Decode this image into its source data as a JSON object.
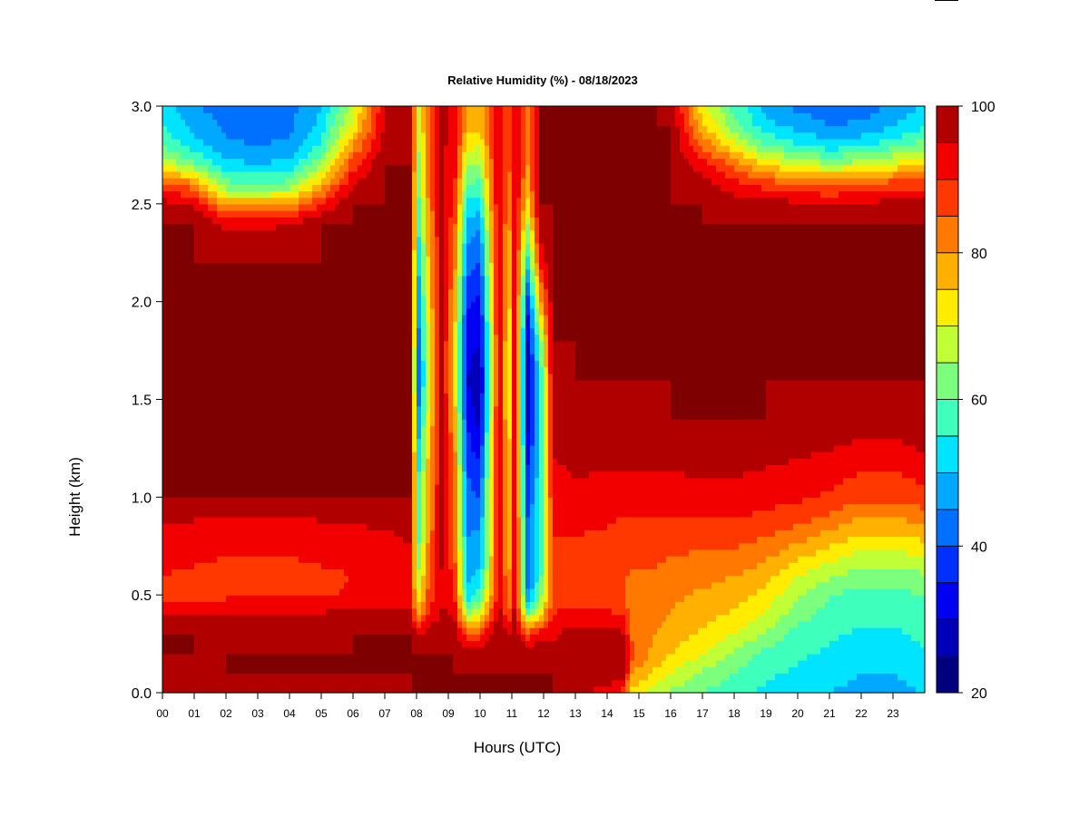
{
  "chart_data": {
    "type": "heatmap",
    "title": "Relative Humidity (%) - 08/18/2023",
    "xlabel": "Hours (UTC)",
    "ylabel": "Height (km)",
    "xlim": [
      0,
      24
    ],
    "ylim": [
      0,
      3
    ],
    "x_tick_values": [
      0,
      1,
      2,
      3,
      4,
      5,
      6,
      7,
      8,
      9,
      10,
      11,
      12,
      13,
      14,
      15,
      16,
      17,
      18,
      19,
      20,
      21,
      22,
      23
    ],
    "x_tick_labels": [
      "00",
      "01",
      "02",
      "03",
      "04",
      "05",
      "06",
      "07",
      "08",
      "09",
      "10",
      "11",
      "12",
      "13",
      "14",
      "15",
      "16",
      "17",
      "18",
      "19",
      "20",
      "21",
      "22",
      "23"
    ],
    "y_tick_values": [
      0,
      0.5,
      1,
      1.5,
      2,
      2.5,
      3
    ],
    "y_tick_labels": [
      "0.0",
      "0.5",
      "1.0",
      "1.5",
      "2.0",
      "2.5",
      "3.0"
    ],
    "colorbar": {
      "range": [
        20,
        100
      ],
      "step": 5,
      "tick_values": [
        20,
        40,
        60,
        80,
        100
      ],
      "tick_labels": [
        "20",
        "40",
        "60",
        "80",
        "100"
      ],
      "colors": [
        "#00007f",
        "#0000b8",
        "#0000f2",
        "#0030ff",
        "#0070ff",
        "#00a8ff",
        "#00e4ff",
        "#3fffbc",
        "#7cff7c",
        "#c0ff36",
        "#ffec00",
        "#ffb000",
        "#ff7800",
        "#ff3800",
        "#f20000",
        "#b00000",
        "#7f0000"
      ]
    },
    "grid": false,
    "legend": "right colorbar",
    "profile_heights_km": [
      0.0,
      0.1,
      0.2,
      0.3,
      0.4,
      0.5,
      0.6,
      0.7,
      0.8,
      0.9,
      1.0,
      1.2,
      1.4,
      1.6,
      1.8,
      2.0,
      2.2,
      2.4,
      2.5,
      2.6,
      2.7,
      2.8,
      2.9,
      3.0
    ],
    "profiles": [
      {
        "hour": 0.0,
        "rh": [
          95,
          99,
          100,
          100,
          96,
          88,
          90,
          92,
          91,
          97,
          100,
          100,
          100,
          100,
          100,
          100,
          100,
          100,
          97,
          88,
          70,
          60,
          55,
          52
        ]
      },
      {
        "hour": 1.0,
        "rh": [
          96,
          99,
          100,
          100,
          95,
          88,
          89,
          91,
          90,
          96,
          100,
          100,
          100,
          100,
          100,
          100,
          100,
          100,
          95,
          82,
          62,
          52,
          48,
          46
        ]
      },
      {
        "hour": 2.0,
        "rh": [
          97,
          100,
          100,
          99,
          95,
          89,
          88,
          90,
          90,
          95,
          100,
          100,
          100,
          100,
          100,
          100,
          100,
          94,
          78,
          62,
          52,
          46,
          44,
          42
        ]
      },
      {
        "hour": 3.0,
        "rh": [
          97,
          100,
          100,
          99,
          95,
          89,
          88,
          90,
          90,
          95,
          100,
          100,
          100,
          100,
          100,
          100,
          100,
          94,
          78,
          60,
          50,
          45,
          42,
          40
        ]
      },
      {
        "hour": 4.0,
        "rh": [
          97,
          100,
          100,
          99,
          95,
          89,
          88,
          90,
          90,
          95,
          100,
          100,
          100,
          100,
          100,
          100,
          100,
          95,
          80,
          62,
          52,
          46,
          44,
          43
        ]
      },
      {
        "hour": 5.0,
        "rh": [
          98,
          100,
          100,
          99,
          96,
          89,
          89,
          91,
          91,
          96,
          100,
          100,
          100,
          100,
          100,
          100,
          100,
          100,
          90,
          78,
          65,
          56,
          52,
          50
        ]
      },
      {
        "hour": 6.0,
        "rh": [
          99,
          100,
          100,
          100,
          97,
          91,
          90,
          92,
          92,
          97,
          100,
          100,
          100,
          100,
          100,
          100,
          100,
          100,
          100,
          95,
          88,
          80,
          72,
          68
        ]
      },
      {
        "hour": 7.0,
        "rh": [
          99,
          100,
          100,
          100,
          97,
          92,
          91,
          92,
          93,
          98,
          100,
          100,
          100,
          100,
          100,
          100,
          100,
          100,
          100,
          100,
          100,
          98,
          96,
          95
        ]
      },
      {
        "hour": 7.8,
        "rh": [
          100,
          100,
          100,
          100,
          97,
          93,
          92,
          94,
          96,
          100,
          100,
          100,
          100,
          100,
          100,
          100,
          100,
          100,
          100,
          100,
          100,
          100,
          100,
          100
        ]
      },
      {
        "hour": 8.05,
        "rh": [
          100,
          100,
          100,
          96,
          80,
          70,
          65,
          60,
          58,
          56,
          56,
          52,
          45,
          40,
          42,
          45,
          50,
          55,
          58,
          60,
          62,
          64,
          66,
          66
        ]
      },
      {
        "hour": 8.4,
        "rh": [
          100,
          100,
          100,
          98,
          90,
          88,
          86,
          84,
          82,
          80,
          80,
          78,
          74,
          70,
          72,
          75,
          78,
          80,
          82,
          84,
          85,
          86,
          86,
          86
        ]
      },
      {
        "hour": 8.8,
        "rh": [
          100,
          100,
          100,
          100,
          96,
          94,
          95,
          96,
          97,
          97,
          97,
          97,
          97,
          97,
          97,
          97,
          97,
          97,
          97,
          97,
          96,
          96,
          96,
          96
        ]
      },
      {
        "hour": 9.2,
        "rh": [
          100,
          100,
          100,
          99,
          95,
          90,
          88,
          86,
          85,
          84,
          84,
          82,
          78,
          74,
          75,
          78,
          82,
          86,
          88,
          90,
          92,
          93,
          94,
          94
        ]
      },
      {
        "hour": 9.6,
        "rh": [
          100,
          100,
          98,
          86,
          65,
          52,
          48,
          46,
          45,
          44,
          42,
          38,
          34,
          30,
          32,
          36,
          42,
          48,
          54,
          60,
          66,
          72,
          78,
          80
        ]
      },
      {
        "hour": 10.0,
        "rh": [
          100,
          100,
          98,
          88,
          70,
          58,
          52,
          48,
          46,
          44,
          40,
          34,
          28,
          26,
          30,
          34,
          40,
          46,
          52,
          58,
          64,
          70,
          76,
          78
        ]
      },
      {
        "hour": 10.3,
        "rh": [
          100,
          100,
          99,
          94,
          84,
          76,
          72,
          70,
          70,
          70,
          70,
          68,
          64,
          60,
          62,
          66,
          70,
          74,
          78,
          80,
          82,
          84,
          86,
          86
        ]
      },
      {
        "hour": 10.6,
        "rh": [
          100,
          100,
          100,
          99,
          97,
          96,
          96,
          96,
          96,
          96,
          96,
          96,
          96,
          96,
          96,
          96,
          96,
          96,
          96,
          96,
          96,
          96,
          96,
          96
        ]
      },
      {
        "hour": 10.9,
        "rh": [
          100,
          100,
          99,
          95,
          85,
          80,
          78,
          76,
          76,
          76,
          75,
          73,
          70,
          68,
          70,
          72,
          75,
          78,
          80,
          82,
          84,
          86,
          86,
          86
        ]
      },
      {
        "hour": 11.1,
        "rh": [
          100,
          100,
          100,
          100,
          97,
          96,
          96,
          96,
          96,
          96,
          96,
          96,
          96,
          96,
          96,
          96,
          96,
          96,
          96,
          96,
          96,
          96,
          96,
          96
        ]
      },
      {
        "hour": 11.5,
        "rh": [
          100,
          100,
          99,
          88,
          62,
          46,
          42,
          40,
          40,
          40,
          38,
          34,
          28,
          26,
          30,
          38,
          52,
          66,
          74,
          78,
          80,
          80,
          80,
          80
        ]
      },
      {
        "hour": 11.9,
        "rh": [
          100,
          100,
          99,
          93,
          75,
          62,
          58,
          56,
          56,
          56,
          56,
          55,
          54,
          55,
          62,
          78,
          92,
          98,
          100,
          100,
          100,
          100,
          100,
          100
        ]
      },
      {
        "hour": 12.3,
        "rh": [
          100,
          100,
          98,
          94,
          90,
          88,
          88,
          89,
          90,
          92,
          93,
          95,
          97,
          99,
          100,
          100,
          100,
          100,
          100,
          100,
          100,
          100,
          100,
          100
        ]
      },
      {
        "hour": 13.0,
        "rh": [
          96,
          99,
          100,
          98,
          92,
          88,
          88,
          89,
          90,
          92,
          94,
          96,
          98,
          100,
          100,
          100,
          100,
          100,
          100,
          100,
          100,
          100,
          100,
          100
        ]
      },
      {
        "hour": 14.0,
        "rh": [
          93,
          98,
          100,
          97,
          91,
          87,
          87,
          88,
          89,
          91,
          93,
          96,
          99,
          100,
          100,
          100,
          100,
          100,
          100,
          100,
          100,
          100,
          100,
          100
        ]
      },
      {
        "hour": 14.5,
        "rh": [
          88,
          98,
          100,
          96,
          89,
          86,
          86,
          87,
          88,
          90,
          93,
          96,
          99,
          100,
          100,
          100,
          100,
          100,
          100,
          100,
          100,
          100,
          100,
          100
        ]
      },
      {
        "hour": 14.8,
        "rh": [
          72,
          80,
          86,
          84,
          82,
          82,
          84,
          86,
          88,
          90,
          93,
          96,
          99,
          100,
          100,
          100,
          100,
          100,
          100,
          100,
          100,
          100,
          100,
          100
        ]
      },
      {
        "hour": 15.5,
        "rh": [
          68,
          74,
          78,
          80,
          81,
          82,
          84,
          86,
          88,
          90,
          93,
          96,
          99,
          100,
          100,
          100,
          100,
          100,
          100,
          100,
          100,
          100,
          100,
          100
        ]
      },
      {
        "hour": 16.0,
        "rh": [
          64,
          70,
          75,
          78,
          80,
          81,
          83,
          85,
          88,
          90,
          93,
          96,
          100,
          100,
          100,
          100,
          100,
          100,
          100,
          100,
          100,
          100,
          100,
          98
        ]
      },
      {
        "hour": 17.0,
        "rh": [
          60,
          64,
          70,
          74,
          77,
          79,
          82,
          84,
          87,
          90,
          93,
          97,
          100,
          100,
          100,
          100,
          100,
          100,
          100,
          98,
          92,
          84,
          76,
          72
        ]
      },
      {
        "hour": 18.0,
        "rh": [
          56,
          60,
          64,
          70,
          74,
          77,
          80,
          84,
          87,
          90,
          93,
          97,
          100,
          100,
          100,
          100,
          100,
          100,
          98,
          92,
          84,
          72,
          62,
          58
        ]
      },
      {
        "hour": 19.0,
        "rh": [
          54,
          56,
          58,
          64,
          69,
          73,
          77,
          81,
          85,
          89,
          92,
          96,
          100,
          100,
          100,
          100,
          100,
          100,
          98,
          88,
          74,
          60,
          52,
          48
        ]
      },
      {
        "hour": 20.0,
        "rh": [
          52,
          54,
          56,
          58,
          62,
          66,
          70,
          76,
          82,
          87,
          91,
          95,
          99,
          100,
          100,
          100,
          100,
          100,
          96,
          86,
          70,
          56,
          48,
          44
        ]
      },
      {
        "hour": 21.0,
        "rh": [
          50,
          52,
          54,
          56,
          58,
          60,
          66,
          72,
          78,
          84,
          89,
          94,
          99,
          100,
          100,
          100,
          100,
          100,
          95,
          84,
          66,
          52,
          45,
          42
        ]
      },
      {
        "hour": 22.0,
        "rh": [
          48,
          50,
          52,
          54,
          56,
          58,
          62,
          68,
          74,
          80,
          86,
          92,
          98,
          100,
          100,
          100,
          100,
          100,
          96,
          86,
          68,
          54,
          46,
          42
        ]
      },
      {
        "hour": 23.0,
        "rh": [
          48,
          50,
          52,
          54,
          56,
          58,
          62,
          68,
          74,
          80,
          86,
          92,
          98,
          100,
          100,
          100,
          100,
          100,
          97,
          88,
          72,
          58,
          50,
          46
        ]
      },
      {
        "hour": 23.9,
        "rh": [
          50,
          52,
          54,
          56,
          58,
          60,
          64,
          70,
          76,
          82,
          88,
          94,
          99,
          100,
          100,
          100,
          100,
          100,
          97,
          88,
          74,
          62,
          54,
          50
        ]
      }
    ]
  }
}
